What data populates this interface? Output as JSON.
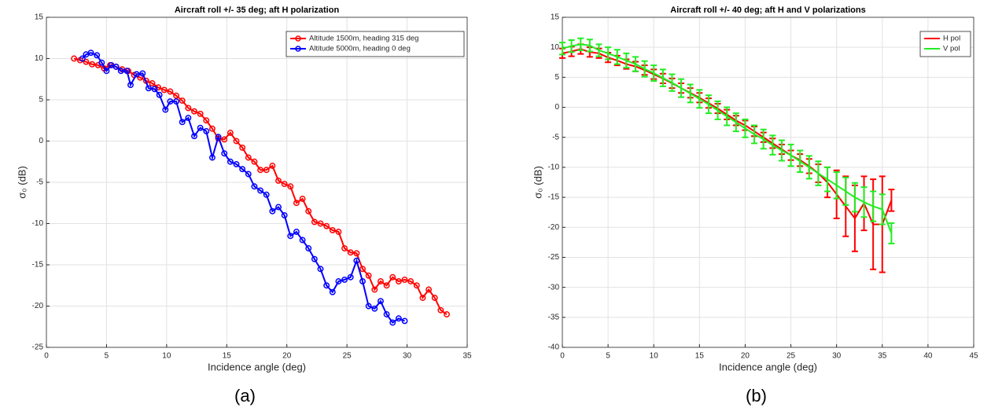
{
  "chart_data": [
    {
      "type": "line",
      "title": "Aircraft roll +/- 35 deg; aft H polarization",
      "x_label": "Incidence angle (deg)",
      "y_label": "σ₀ (dB)",
      "caption": "(a)",
      "xlim": [
        0,
        35
      ],
      "xticks": [
        0,
        5,
        10,
        15,
        20,
        25,
        30,
        35
      ],
      "ylim": [
        -25,
        15
      ],
      "yticks": [
        -25,
        -20,
        -15,
        -10,
        -5,
        0,
        5,
        10,
        15
      ],
      "grid": true,
      "legend": "upper right",
      "marker": "circle",
      "series": [
        {
          "name": "Altitude 1500m, heading 315 deg",
          "color": "#ff0000",
          "x": [
            2.3,
            2.8,
            3.3,
            3.8,
            4.3,
            4.8,
            5.3,
            5.8,
            6.3,
            6.8,
            7.3,
            7.8,
            8.3,
            8.8,
            9.3,
            9.8,
            10.3,
            10.8,
            11.3,
            11.8,
            12.3,
            12.8,
            13.3,
            13.8,
            14.3,
            14.8,
            15.3,
            15.8,
            16.3,
            16.8,
            17.3,
            17.8,
            18.3,
            18.8,
            19.3,
            19.8,
            20.3,
            20.8,
            21.3,
            21.8,
            22.3,
            22.8,
            23.3,
            23.8,
            24.3,
            24.8,
            25.3,
            25.8,
            26.3,
            26.8,
            27.3,
            27.8,
            28.3,
            28.8,
            29.3,
            29.8,
            30.3,
            30.8,
            31.3,
            31.8,
            32.3,
            32.8,
            33.3
          ],
          "values": [
            10,
            9.8,
            9.6,
            9.3,
            9.2,
            8.8,
            9.2,
            9.0,
            8.7,
            8.5,
            8.0,
            7.7,
            7.3,
            7.0,
            6.5,
            6.2,
            6.0,
            5.5,
            4.9,
            4.0,
            3.6,
            3.3,
            2.5,
            1.5,
            0.3,
            0.2,
            1.0,
            0.0,
            -0.8,
            -2.0,
            -2.5,
            -3.5,
            -3.5,
            -3.0,
            -4.8,
            -5.2,
            -5.5,
            -7.5,
            -7.0,
            -8.5,
            -9.8,
            -10.0,
            -10.3,
            -10.8,
            -11.0,
            -13.0,
            -13.5,
            -13.6,
            -15.5,
            -16.3,
            -18.0,
            -17.0,
            -17.5,
            -16.5,
            -17.0,
            -16.8,
            -17.0,
            -17.5,
            -19.0,
            -18.0,
            -19.0,
            -20.5,
            -21.0
          ]
        },
        {
          "name": "Altitude 5000m, heading 0 deg",
          "color": "#0000ff",
          "x": [
            3.0,
            3.3,
            3.7,
            4.2,
            4.6,
            5.0,
            5.4,
            5.8,
            6.2,
            6.7,
            7.0,
            7.5,
            8.0,
            8.5,
            9.0,
            9.4,
            9.9,
            10.3,
            10.8,
            11.3,
            11.8,
            12.3,
            12.8,
            13.3,
            13.8,
            14.3,
            14.8,
            15.3,
            15.8,
            16.3,
            16.8,
            17.3,
            17.8,
            18.3,
            18.8,
            19.3,
            19.8,
            20.3,
            20.8,
            21.3,
            21.8,
            22.3,
            22.8,
            23.3,
            23.8,
            24.3,
            24.8,
            25.3,
            25.8,
            26.3,
            26.8,
            27.3,
            27.8,
            28.3,
            28.8,
            29.3,
            29.8
          ],
          "values": [
            10.0,
            10.5,
            10.7,
            10.4,
            9.5,
            8.5,
            9.2,
            9.0,
            8.5,
            8.5,
            6.8,
            8.1,
            8.2,
            6.4,
            6.3,
            5.6,
            3.8,
            4.8,
            4.8,
            2.3,
            2.8,
            0.6,
            1.6,
            1.2,
            -2.0,
            0.5,
            -1.5,
            -2.5,
            -2.8,
            -3.4,
            -4.0,
            -5.5,
            -6.0,
            -6.5,
            -8.5,
            -8.0,
            -9.0,
            -11.5,
            -11.0,
            -12.0,
            -13.0,
            -14.3,
            -15.5,
            -17.5,
            -18.3,
            -17.0,
            -16.8,
            -16.5,
            -14.5,
            -17.0,
            -20.0,
            -20.3,
            -19.4,
            -21.0,
            -22.0,
            -21.5,
            -21.8
          ]
        }
      ]
    },
    {
      "type": "errorbar",
      "title": "Aircraft roll +/- 40 deg; aft H and V polarizations",
      "x_label": "Incidence angle (deg)",
      "y_label": "σ₀ (dB)",
      "caption": "(b)",
      "xlim": [
        0,
        45
      ],
      "xticks": [
        0,
        5,
        10,
        15,
        20,
        25,
        30,
        35,
        40,
        45
      ],
      "ylim": [
        -40,
        15
      ],
      "yticks": [
        -40,
        -35,
        -30,
        -25,
        -20,
        -15,
        -10,
        -5,
        0,
        5,
        10,
        15
      ],
      "grid": true,
      "legend": "upper right",
      "x": [
        0,
        1,
        2,
        3,
        4,
        5,
        6,
        7,
        8,
        9,
        10,
        11,
        12,
        13,
        14,
        15,
        16,
        17,
        18,
        19,
        20,
        21,
        22,
        23,
        24,
        25,
        26,
        27,
        28,
        29,
        30,
        31,
        32,
        33,
        34,
        35,
        36
      ],
      "series": [
        {
          "name": "H pol",
          "color": "#ff0000",
          "values": [
            9.0,
            9.3,
            9.7,
            9.2,
            9.0,
            8.3,
            7.8,
            7.2,
            6.8,
            6.2,
            5.5,
            4.8,
            4.0,
            3.2,
            2.4,
            1.6,
            0.7,
            -0.2,
            -1.2,
            -2.2,
            -3.0,
            -4.0,
            -5.0,
            -6.0,
            -7.0,
            -8.0,
            -8.8,
            -9.8,
            -11.0,
            -12.5,
            -14.5,
            -16.5,
            -18.5,
            -16.0,
            -19.5,
            -19.5,
            -15.5
          ],
          "errors": [
            0.8,
            0.8,
            0.8,
            0.8,
            0.8,
            0.8,
            0.8,
            0.8,
            0.8,
            0.8,
            0.8,
            0.8,
            0.8,
            0.8,
            0.8,
            0.8,
            0.8,
            0.8,
            0.8,
            0.8,
            0.8,
            0.8,
            0.8,
            0.8,
            0.8,
            0.8,
            1.0,
            1.2,
            1.5,
            2.5,
            4.0,
            5.0,
            5.5,
            4.5,
            7.5,
            8.0,
            1.8
          ]
        },
        {
          "name": "V pol",
          "color": "#22ee22",
          "values": [
            9.8,
            10.2,
            10.5,
            10.3,
            9.5,
            9.0,
            8.4,
            7.8,
            7.2,
            6.4,
            5.7,
            4.9,
            4.1,
            3.2,
            2.3,
            1.4,
            0.5,
            -0.5,
            -1.5,
            -2.5,
            -3.5,
            -4.5,
            -5.3,
            -6.3,
            -7.2,
            -8.0,
            -9.0,
            -10.0,
            -11.0,
            -12.0,
            -13.0,
            -14.0,
            -15.0,
            -15.8,
            -16.5,
            -17.0,
            -21.0
          ],
          "errors": [
            1.0,
            1.0,
            1.0,
            1.0,
            1.0,
            1.0,
            1.2,
            1.2,
            1.2,
            1.3,
            1.3,
            1.4,
            1.4,
            1.5,
            1.5,
            1.5,
            1.5,
            1.5,
            1.5,
            1.5,
            1.5,
            1.5,
            1.6,
            1.6,
            1.7,
            1.8,
            1.8,
            1.9,
            2.0,
            2.0,
            2.2,
            2.3,
            2.4,
            2.5,
            2.5,
            2.5,
            1.7
          ]
        }
      ]
    }
  ]
}
